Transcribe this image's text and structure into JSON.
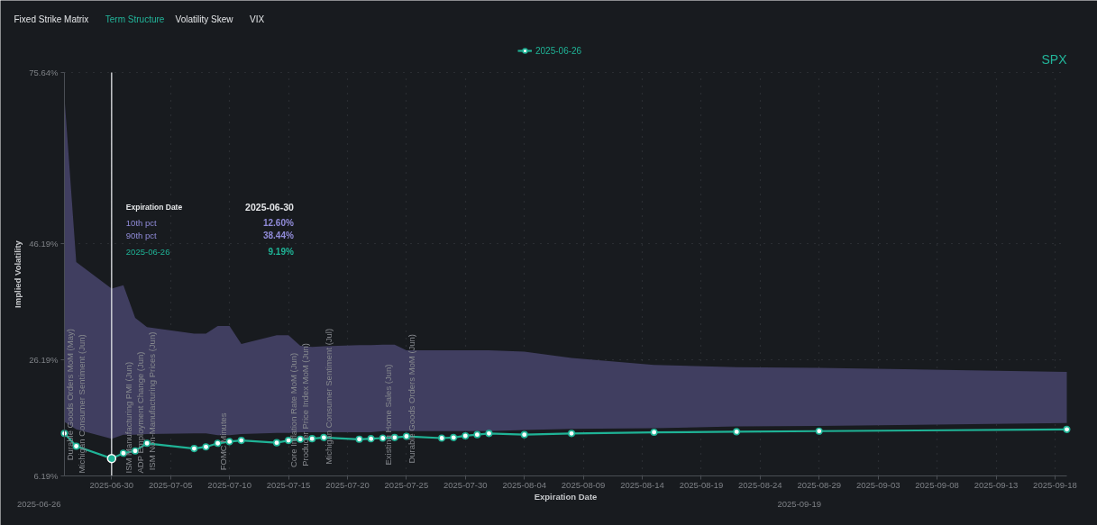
{
  "chart_data": {
    "type": "line",
    "title": "Term Structure",
    "subtitle": "SPX",
    "xlabel": "Expiration Date",
    "ylabel": "Implied Volatility",
    "x": [
      "2025-06-26",
      "2025-06-27",
      "2025-06-30",
      "2025-07-01",
      "2025-07-02",
      "2025-07-03",
      "2025-07-07",
      "2025-07-08",
      "2025-07-09",
      "2025-07-10",
      "2025-07-11",
      "2025-07-14",
      "2025-07-15",
      "2025-07-16",
      "2025-07-17",
      "2025-07-18",
      "2025-07-21",
      "2025-07-22",
      "2025-07-23",
      "2025-07-24",
      "2025-07-25",
      "2025-07-28",
      "2025-07-29",
      "2025-07-30",
      "2025-07-31",
      "2025-08-01",
      "2025-08-04",
      "2025-08-08",
      "2025-08-15",
      "2025-08-22",
      "2025-08-29",
      "2025-09-19"
    ],
    "series": [
      {
        "type": "area",
        "color": "#403e60",
        "values": [
          null,
          null,
          null,
          null,
          null,
          null,
          null,
          null,
          null,
          null,
          null,
          null,
          null,
          null,
          null,
          null,
          null,
          null,
          null,
          null,
          null,
          null,
          null,
          null,
          null,
          null,
          null,
          null,
          null,
          null,
          null,
          null
        ],
        "lower": [
          15.5,
          14.2,
          12.6,
          13.3,
          13.3,
          13.4,
          13.5,
          13.5,
          13.2,
          13.2,
          13.4,
          13.6,
          13.6,
          13.7,
          13.7,
          13.7,
          13.7,
          13.7,
          13.9,
          13.9,
          13.9,
          13.9,
          13.9,
          13.9,
          13.9,
          13.9,
          14.1,
          14.3,
          14.4,
          14.7,
          14.8,
          15.3
        ],
        "upper": [
          71.4,
          43.0,
          38.44,
          39.0,
          33.4,
          31.8,
          30.7,
          30.7,
          32.0,
          32.0,
          28.9,
          30.4,
          30.4,
          28.6,
          28.4,
          28.5,
          28.7,
          28.7,
          28.8,
          28.8,
          27.8,
          27.8,
          27.8,
          27.8,
          27.8,
          27.8,
          27.6,
          26.5,
          25.3,
          24.9,
          24.8,
          24.1
        ]
      },
      {
        "name": "2025-06-26",
        "color": "#1fb396",
        "values": [
          13.5,
          11.3,
          9.19,
          10.1,
          10.5,
          11.8,
          10.9,
          11.2,
          11.8,
          12.1,
          12.3,
          11.9,
          12.3,
          12.5,
          12.6,
          12.8,
          12.5,
          12.6,
          12.7,
          12.8,
          13.0,
          12.7,
          12.8,
          13.1,
          13.3,
          13.5,
          13.3,
          13.5,
          13.7,
          13.8,
          13.9,
          14.2
        ]
      }
    ],
    "xlim": [
      "2025-06-26",
      "2025-09-19"
    ],
    "xticks": [
      "2025-06-30",
      "2025-07-05",
      "2025-07-10",
      "2025-07-15",
      "2025-07-20",
      "2025-07-25",
      "2025-07-30",
      "2025-08-04",
      "2025-08-09",
      "2025-08-14",
      "2025-08-19",
      "2025-08-24",
      "2025-08-29",
      "2025-09-03",
      "2025-09-08",
      "2025-09-13",
      "2025-09-18"
    ],
    "ylim": [
      6.19,
      75.64
    ],
    "yticks": [
      {
        "value": 6.19,
        "label": "6.19%"
      },
      {
        "value": 26.19,
        "label": "26.19%"
      },
      {
        "value": 46.19,
        "label": "46.19%"
      },
      {
        "value": 75.64,
        "label": "75.64%"
      }
    ],
    "grid": true,
    "legend": "top",
    "marker": "circle",
    "ref_lines": [
      {
        "axis": "x",
        "value": "2025-06-30",
        "label": "Expiration Date",
        "color": "#e2e4e7"
      }
    ],
    "annotations": [
      "Fixed Strike Matrix",
      "Volatility Skew",
      "VIX",
      "2025-06-30",
      "10th pct",
      "12.60%",
      "90th pct",
      "38.44%",
      "2025-06-26",
      "9.19%",
      "2025-06-26",
      "2025-09-19",
      {
        "text": "Durable Goods Orders MoM (May)",
        "x": "2025-06-26",
        "y": 13.5
      },
      {
        "text": "Michigan Consumer Sentiment (Jun)",
        "x": "2025-06-27",
        "y": 11.3
      },
      {
        "text": "ISM Manufacturing PMI (Jun)",
        "x": "2025-07-01",
        "y": 10.1
      },
      {
        "text": "ADP Employment Change (Jun)",
        "x": "2025-07-02",
        "y": 10.5
      },
      {
        "text": "ISM Non-Manufacturing Prices (Jun)",
        "x": "2025-07-03",
        "y": 11.8
      },
      {
        "text": "FOMC Minutes",
        "x": "2025-07-09",
        "y": 11.8
      },
      {
        "text": "Core Inflation Rate MoM (Jun)",
        "x": "2025-07-15",
        "y": 12.3
      },
      {
        "text": "Producer Price Index MoM (Jun)",
        "x": "2025-07-16",
        "y": 12.5
      },
      {
        "text": "Michigan Consumer Sentiment (Jul)",
        "x": "2025-07-18",
        "y": 12.8
      },
      {
        "text": "Existing Home Sales (Jun)",
        "x": "2025-07-23",
        "y": 12.7
      },
      {
        "text": "Durable Goods Orders MoM (Jun)",
        "x": "2025-07-25",
        "y": 13.0
      }
    ]
  }
}
